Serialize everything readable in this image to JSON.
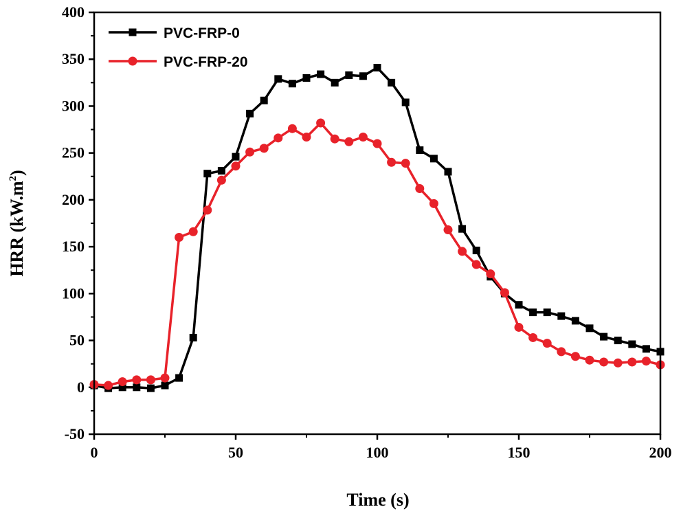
{
  "chart_data": {
    "type": "line",
    "title": "",
    "xlabel": "Time (s)",
    "ylabel_main": "HRR (kW.m",
    "ylabel_sup": "2",
    "ylabel_close": ")",
    "xlim": [
      0,
      200
    ],
    "ylim": [
      -50,
      400
    ],
    "xticks": [
      0,
      50,
      100,
      150,
      200
    ],
    "yticks": [
      -50,
      0,
      50,
      100,
      150,
      200,
      250,
      300,
      350,
      400
    ],
    "grid": false,
    "legend_position": "top-left",
    "x": [
      0,
      5,
      10,
      15,
      20,
      25,
      30,
      35,
      40,
      45,
      50,
      55,
      60,
      65,
      70,
      75,
      80,
      85,
      90,
      95,
      100,
      105,
      110,
      115,
      120,
      125,
      130,
      135,
      140,
      145,
      150,
      155,
      160,
      165,
      170,
      175,
      180,
      185,
      190,
      195,
      200
    ],
    "series": [
      {
        "name": "PVC-FRP-0",
        "color": "#000000",
        "marker": "square",
        "values": [
          2,
          -1,
          0,
          0,
          -1,
          2,
          10,
          53,
          228,
          231,
          246,
          292,
          306,
          329,
          324,
          330,
          334,
          325,
          333,
          332,
          341,
          325,
          304,
          253,
          244,
          230,
          169,
          146,
          118,
          100,
          88,
          80,
          80,
          76,
          71,
          63,
          54,
          50,
          46,
          41,
          38
        ]
      },
      {
        "name": "PVC-FRP-20",
        "color": "#e8222a",
        "marker": "circle",
        "values": [
          3,
          2,
          6,
          8,
          8,
          10,
          160,
          166,
          189,
          221,
          236,
          251,
          255,
          266,
          276,
          267,
          282,
          265,
          262,
          267,
          260,
          240,
          239,
          212,
          196,
          168,
          145,
          131,
          121,
          101,
          64,
          53,
          47,
          38,
          33,
          29,
          27,
          26,
          27,
          28,
          24
        ]
      }
    ]
  }
}
